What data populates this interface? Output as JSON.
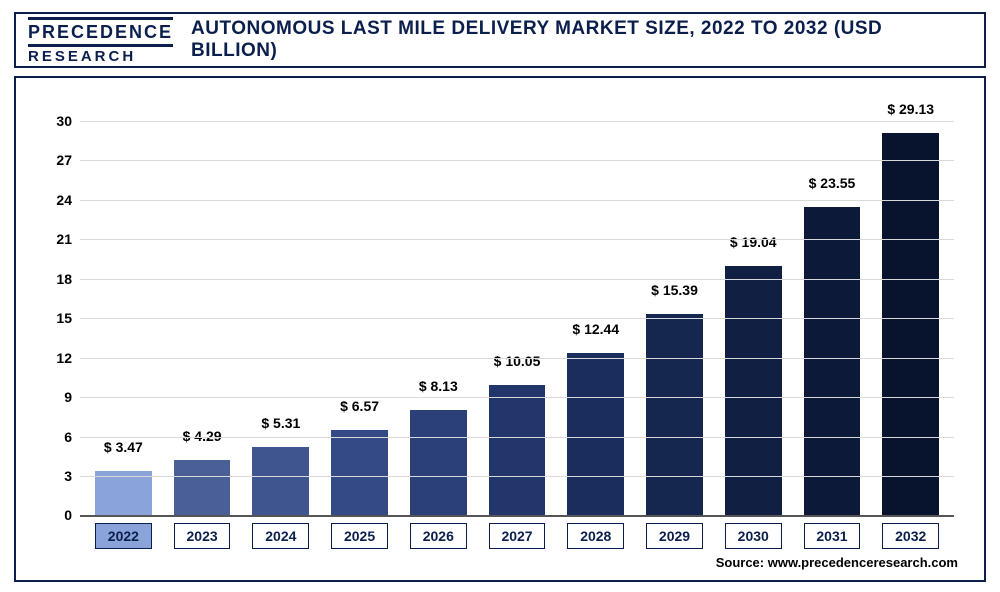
{
  "logo": {
    "top": "PRECEDENCE",
    "bottom": "RESEARCH",
    "color": "#0b1f4d"
  },
  "title": "AUTONOMOUS LAST MILE DELIVERY MARKET SIZE, 2022 TO 2032 (USD BILLION)",
  "title_color": "#0b1f4d",
  "border_color": "#0b1f4d",
  "source": "Source: www.precedenceresearch.com",
  "chart": {
    "type": "bar",
    "ylim_max": 31.5,
    "yticks": [
      0,
      3,
      6,
      9,
      12,
      15,
      18,
      21,
      24,
      27,
      30
    ],
    "grid_color": "#d9d9d9",
    "baseline_color": "#555555",
    "bar_label_prefix": "$ ",
    "label_color": "#000000",
    "label_fontsize": 14,
    "x_box_border": "#0b1f4d",
    "x_box_highlight_bg": "#8aa3d8",
    "bars": [
      {
        "year": "2022",
        "value": 3.47,
        "color": "#8aa3d8",
        "highlight": true
      },
      {
        "year": "2023",
        "value": 4.29,
        "color": "#4a5f95",
        "highlight": false
      },
      {
        "year": "2024",
        "value": 5.31,
        "color": "#3f5590",
        "highlight": false
      },
      {
        "year": "2025",
        "value": 6.57,
        "color": "#344a86",
        "highlight": false
      },
      {
        "year": "2026",
        "value": 8.13,
        "color": "#2b4079",
        "highlight": false
      },
      {
        "year": "2027",
        "value": 10.05,
        "color": "#23366b",
        "highlight": false
      },
      {
        "year": "2028",
        "value": 12.44,
        "color": "#1b2d5d",
        "highlight": false
      },
      {
        "year": "2029",
        "value": 15.39,
        "color": "#15264f",
        "highlight": false
      },
      {
        "year": "2030",
        "value": 19.04,
        "color": "#101f42",
        "highlight": false
      },
      {
        "year": "2031",
        "value": 23.55,
        "color": "#0c1938",
        "highlight": false
      },
      {
        "year": "2032",
        "value": 29.13,
        "color": "#08132e",
        "highlight": false
      }
    ]
  }
}
